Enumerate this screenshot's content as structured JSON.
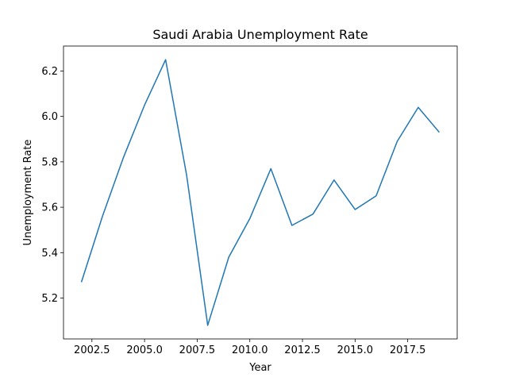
{
  "chart_data": {
    "type": "line",
    "title": "Saudi Arabia Unemployment Rate",
    "xlabel": "Year",
    "ylabel": "Unemployment Rate",
    "xlim": [
      2001.15,
      2019.85
    ],
    "ylim": [
      5.02,
      6.31
    ],
    "grid": false,
    "legend": "none",
    "series_color": "#1f77b4",
    "x": [
      2002,
      2003,
      2004,
      2005,
      2006,
      2007,
      2008,
      2009,
      2010,
      2011,
      2012,
      2013,
      2014,
      2015,
      2016,
      2017,
      2018,
      2019
    ],
    "values": [
      5.27,
      5.56,
      5.82,
      6.05,
      6.25,
      5.74,
      5.08,
      5.38,
      5.55,
      5.77,
      5.52,
      5.57,
      5.72,
      5.59,
      5.65,
      5.89,
      6.04,
      5.93
    ],
    "x_ticks": [
      2002.5,
      2005.0,
      2007.5,
      2010.0,
      2012.5,
      2015.0,
      2017.5
    ],
    "x_tick_labels": [
      "2002.5",
      "2005.0",
      "2007.5",
      "2010.0",
      "2012.5",
      "2015.0",
      "2017.5"
    ],
    "y_ticks": [
      5.2,
      5.4,
      5.6,
      5.8,
      6.0,
      6.2
    ],
    "y_tick_labels": [
      "5.2",
      "5.4",
      "5.6",
      "5.8",
      "6.0",
      "6.2"
    ]
  }
}
